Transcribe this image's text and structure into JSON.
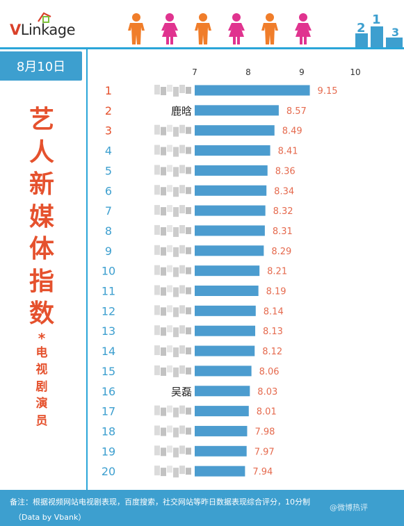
{
  "header": {
    "logo_v": "V",
    "logo_rest": "Linkage",
    "podium_numbers": [
      "2",
      "1",
      "3"
    ]
  },
  "date": "8月10日",
  "title_chars": [
    "艺",
    "人",
    "新",
    "媒",
    "体",
    "指",
    "数"
  ],
  "title_star": "*",
  "subtitle_chars": [
    "电",
    "视",
    "剧",
    "演",
    "员"
  ],
  "colors": {
    "bar": "#4b9ccf",
    "rank_top": "#e5512d",
    "rank_rest": "#3d9fcf",
    "value": "#e56a4e",
    "accent": "#2aa5d8",
    "male_icon": "#f07d2a",
    "female_icon": "#e0338f"
  },
  "chart_data": {
    "type": "bar",
    "orientation": "horizontal",
    "xlim": [
      7,
      10
    ],
    "xticks": [
      "7",
      "8",
      "9",
      "10"
    ],
    "ranks": [
      "1",
      "2",
      "3",
      "4",
      "5",
      "6",
      "7",
      "8",
      "9",
      "10",
      "11",
      "12",
      "13",
      "14",
      "15",
      "16",
      "17",
      "18",
      "19",
      "20"
    ],
    "categories": [
      "",
      "鹿晗",
      "",
      "",
      "",
      "",
      "",
      "",
      "",
      "",
      "",
      "",
      "",
      "",
      "",
      "吴磊",
      "",
      "",
      "",
      ""
    ],
    "values": [
      9.15,
      8.57,
      8.49,
      8.41,
      8.36,
      8.34,
      8.32,
      8.31,
      8.29,
      8.21,
      8.19,
      8.14,
      8.13,
      8.12,
      8.06,
      8.03,
      8.01,
      7.98,
      7.97,
      7.94
    ],
    "value_labels": [
      "9.15",
      "8.57",
      "8.49",
      "8.41",
      "8.36",
      "8.34",
      "8.32",
      "8.31",
      "8.29",
      "8.21",
      "8.19",
      "8.14",
      "8.13",
      "8.12",
      "8.06",
      "8.03",
      "8.01",
      "7.98",
      "7.97",
      "7.94"
    ]
  },
  "footer": {
    "note": "备注：根据视频网站电视剧表现，百度搜索，社交网站等昨日数据表现综合评分，10分制",
    "source": "（Data by Vbank）",
    "watermark": "@微博热评"
  }
}
